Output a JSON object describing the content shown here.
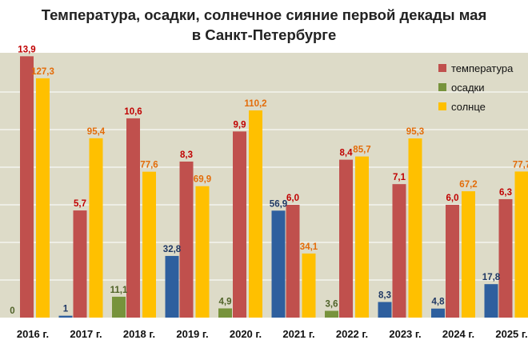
{
  "chart_data": {
    "type": "bar",
    "title": "Температура, осадки, солнечное сияние первой декады мая",
    "subtitle": "в Санкт-Петербурге",
    "categories": [
      "2016 г.",
      "2017 г.",
      "2018 г.",
      "2019 г.",
      "2020 г.",
      "2021 г.",
      "2022 г.",
      "2023 г.",
      "2024 г.",
      "2025 г."
    ],
    "series": [
      {
        "name": "температура",
        "color": "#c0504d",
        "label_color": "#c00000",
        "values": [
          13.9,
          5.7,
          10.6,
          8.3,
          9.9,
          6.0,
          8.4,
          7.1,
          6.0,
          6.3
        ],
        "labels": [
          "13,9",
          "5,7",
          "10,6",
          "8,3",
          "9,9",
          "6,0",
          "8,4",
          "7,1",
          "6,0",
          "6,3"
        ]
      },
      {
        "name": "осадки",
        "legend_color": "#77933c",
        "values": [
          0,
          1,
          11.1,
          32.8,
          4.9,
          56.9,
          3.6,
          8.3,
          4.8,
          17.8
        ],
        "labels": [
          "0",
          "1",
          "11,1",
          "32,8",
          "4,9",
          "56,9",
          "3,6",
          "8,3",
          "4,8",
          "17,8"
        ],
        "colors": [
          "#77933c",
          "#2e5f9e",
          "#77933c",
          "#2e5f9e",
          "#77933c",
          "#2e5f9e",
          "#77933c",
          "#2e5f9e",
          "#2e5f9e",
          "#2e5f9e"
        ],
        "label_colors": [
          "#4f6228",
          "#1f3864",
          "#4f6228",
          "#1f3864",
          "#4f6228",
          "#1f3864",
          "#4f6228",
          "#1f3864",
          "#1f3864",
          "#1f3864"
        ]
      },
      {
        "name": "солнце",
        "color": "#ffc000",
        "label_color": "#e36c09",
        "values": [
          127.3,
          95.4,
          77.6,
          69.9,
          110.2,
          34.1,
          85.7,
          95.3,
          67.2,
          77.7
        ],
        "labels": [
          "127,3",
          "95,4",
          "77,6",
          "69,9",
          "110,2",
          "34,1",
          "85,7",
          "95,3",
          "67,2",
          "77,7"
        ]
      }
    ],
    "background": "#dddbc8",
    "grid": true,
    "legend_position": "top-right",
    "xlabel": "",
    "ylabel": ""
  }
}
